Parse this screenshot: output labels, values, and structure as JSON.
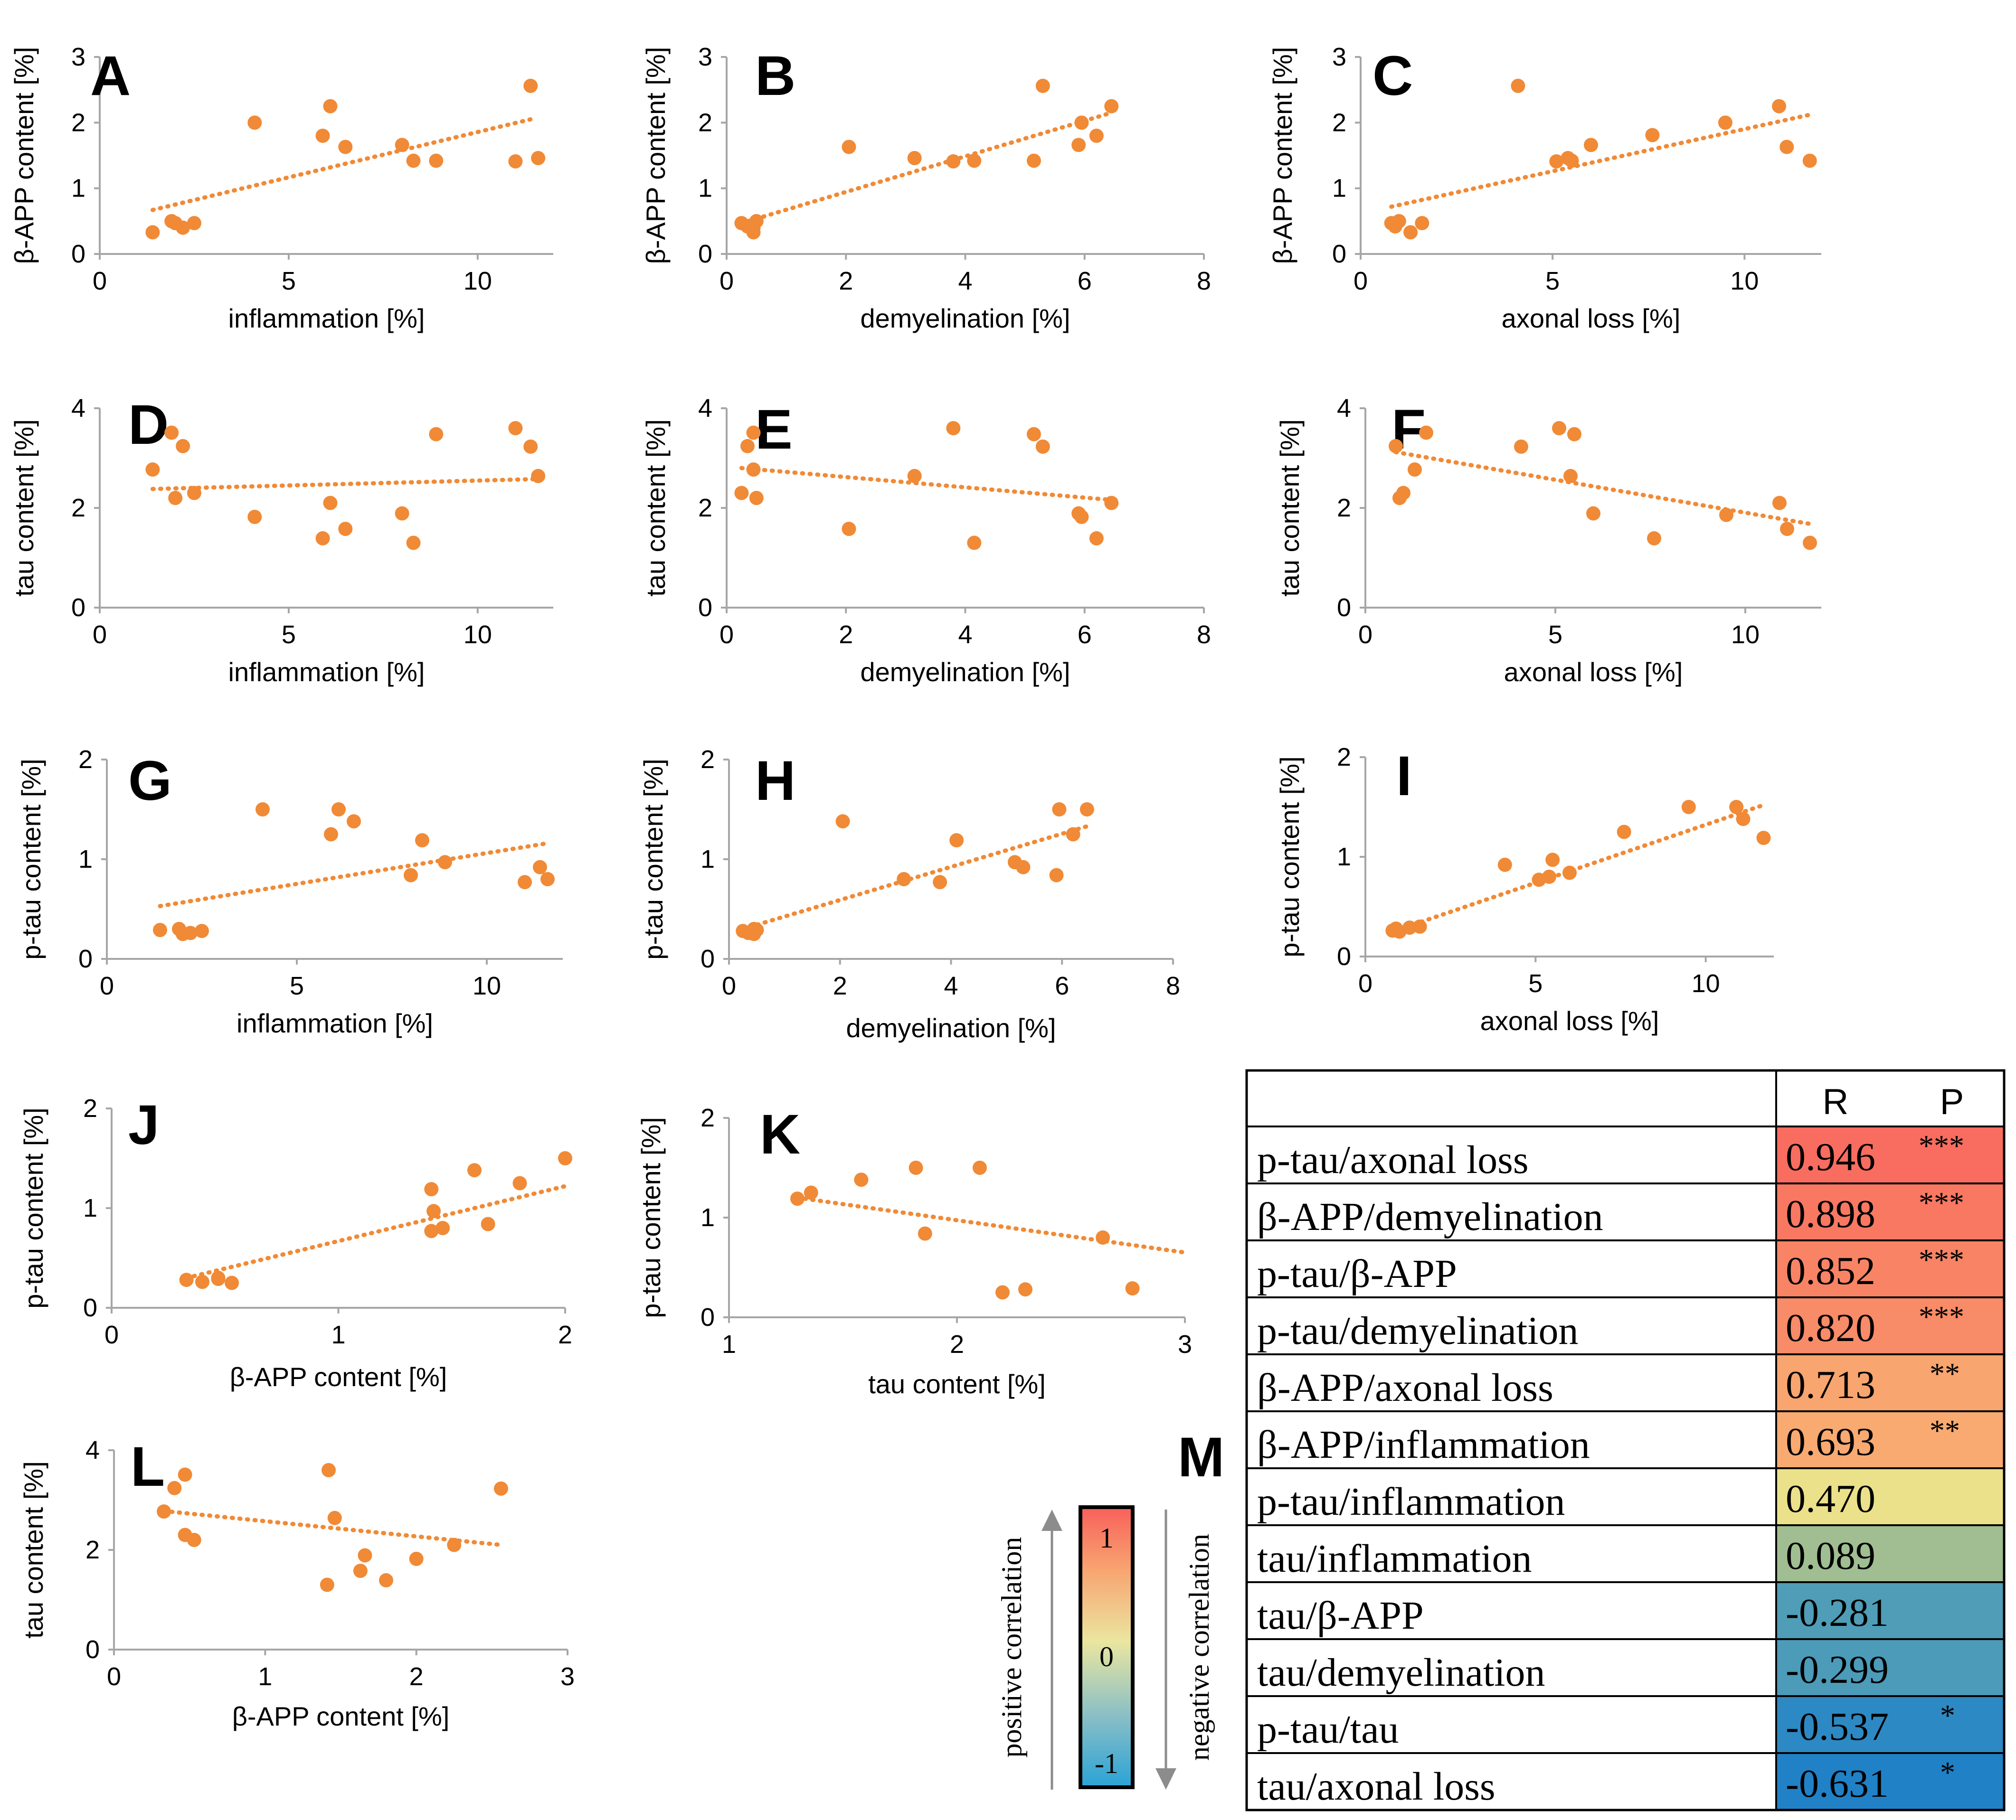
{
  "chart_data": [
    {
      "panel": "A",
      "type": "scatter",
      "xlabel": "inflammation [%]",
      "ylabel": "β-APP content [%]",
      "xlim": [
        0,
        12
      ],
      "ylim": [
        0,
        3
      ],
      "xticks": [
        0,
        5,
        10
      ],
      "yticks": [
        0,
        1,
        2,
        3
      ],
      "x": [
        1.4,
        1.9,
        2.0,
        2.2,
        2.5,
        4.1,
        5.9,
        6.1,
        6.5,
        8.0,
        8.3,
        8.9,
        11.0,
        11.4,
        11.6
      ],
      "y": [
        0.33,
        0.5,
        0.47,
        0.4,
        0.47,
        2.0,
        1.8,
        2.25,
        1.63,
        1.66,
        1.42,
        1.42,
        1.41,
        2.56,
        1.46
      ],
      "trendline": [
        [
          1.4,
          0.67
        ],
        [
          11.4,
          2.05
        ]
      ]
    },
    {
      "panel": "B",
      "type": "scatter",
      "xlabel": "demyelination [%]",
      "ylabel": "β-APP content [%]",
      "xlim": [
        0,
        8
      ],
      "ylim": [
        0,
        3
      ],
      "xticks": [
        0,
        2,
        4,
        6,
        8
      ],
      "yticks": [
        0,
        1,
        2,
        3
      ],
      "x": [
        0.25,
        0.35,
        0.45,
        0.45,
        0.5,
        2.05,
        3.15,
        3.8,
        4.15,
        5.15,
        5.3,
        5.9,
        5.95,
        6.2,
        6.45
      ],
      "y": [
        0.47,
        0.42,
        0.33,
        0.4,
        0.5,
        1.63,
        1.46,
        1.41,
        1.42,
        1.42,
        2.56,
        1.66,
        2.0,
        1.8,
        2.25
      ],
      "trendline": [
        [
          0.25,
          0.47
        ],
        [
          6.45,
          2.15
        ]
      ]
    },
    {
      "panel": "C",
      "type": "scatter",
      "xlabel": "axonal loss [%]",
      "ylabel": "β-APP content [%]",
      "xlim": [
        0,
        12
      ],
      "ylim": [
        0,
        3
      ],
      "xticks": [
        0,
        5,
        10
      ],
      "yticks": [
        0,
        1,
        2,
        3
      ],
      "x": [
        0.8,
        0.9,
        1.0,
        1.3,
        1.6,
        4.1,
        5.1,
        5.4,
        5.5,
        6.0,
        7.6,
        9.5,
        10.9,
        11.1,
        11.7
      ],
      "y": [
        0.47,
        0.42,
        0.5,
        0.33,
        0.47,
        2.56,
        1.41,
        1.46,
        1.42,
        1.66,
        1.81,
        2.0,
        2.25,
        1.63,
        1.42
      ],
      "trendline": [
        [
          0.8,
          0.72
        ],
        [
          11.7,
          2.12
        ]
      ]
    },
    {
      "panel": "D",
      "type": "scatter",
      "xlabel": "inflammation [%]",
      "ylabel": "tau content [%]",
      "xlim": [
        0,
        12
      ],
      "ylim": [
        0,
        4
      ],
      "xticks": [
        0,
        5,
        10
      ],
      "yticks": [
        0,
        2,
        4
      ],
      "x": [
        1.4,
        1.9,
        2.0,
        2.2,
        2.5,
        4.1,
        5.9,
        6.1,
        6.5,
        8.0,
        8.3,
        8.9,
        11.0,
        11.4,
        11.6
      ],
      "y": [
        2.77,
        3.51,
        2.2,
        3.24,
        2.3,
        1.82,
        1.39,
        2.1,
        1.58,
        1.89,
        1.3,
        3.48,
        3.6,
        3.23,
        2.64
      ],
      "trendline": [
        [
          1.4,
          2.38
        ],
        [
          11.6,
          2.58
        ]
      ]
    },
    {
      "panel": "E",
      "type": "scatter",
      "xlabel": "demyelination [%]",
      "ylabel": "tau content [%]",
      "xlim": [
        0,
        8
      ],
      "ylim": [
        0,
        4
      ],
      "xticks": [
        0,
        2,
        4,
        6,
        8
      ],
      "yticks": [
        0,
        2,
        4
      ],
      "x": [
        0.25,
        0.35,
        0.45,
        0.45,
        0.5,
        2.05,
        3.15,
        3.8,
        4.15,
        5.15,
        5.3,
        5.9,
        5.95,
        6.2,
        6.45
      ],
      "y": [
        2.3,
        3.24,
        2.77,
        3.51,
        2.2,
        1.58,
        2.64,
        3.6,
        1.3,
        3.48,
        3.23,
        1.89,
        1.82,
        1.39,
        2.1
      ],
      "trendline": [
        [
          0.25,
          2.8
        ],
        [
          6.45,
          2.16
        ]
      ]
    },
    {
      "panel": "F",
      "type": "scatter",
      "xlabel": "axonal loss [%]",
      "ylabel": "tau content [%]",
      "xlim": [
        0,
        12
      ],
      "ylim": [
        0,
        4
      ],
      "xticks": [
        0,
        5,
        10
      ],
      "yticks": [
        0,
        2,
        4
      ],
      "x": [
        0.8,
        0.9,
        1.0,
        1.3,
        1.6,
        4.1,
        5.1,
        5.4,
        5.5,
        6.0,
        7.6,
        9.5,
        10.9,
        11.1,
        11.7
      ],
      "y": [
        3.24,
        2.2,
        2.3,
        2.77,
        3.51,
        3.23,
        3.6,
        2.64,
        3.48,
        1.89,
        1.39,
        1.86,
        2.1,
        1.58,
        1.3
      ],
      "trendline": [
        [
          0.8,
          3.12
        ],
        [
          11.7,
          1.68
        ]
      ]
    },
    {
      "panel": "G",
      "type": "scatter",
      "xlabel": "inflammation [%]",
      "ylabel": "p-tau content [%]",
      "xlim": [
        0,
        12
      ],
      "ylim": [
        0,
        2
      ],
      "xticks": [
        0,
        5,
        10
      ],
      "yticks": [
        0,
        1,
        2
      ],
      "x": [
        1.4,
        1.9,
        2.0,
        2.2,
        2.5,
        4.1,
        5.9,
        6.1,
        6.5,
        8.0,
        8.3,
        8.9,
        11.0,
        11.4,
        11.6
      ],
      "y": [
        0.29,
        0.3,
        0.25,
        0.26,
        0.28,
        1.5,
        1.25,
        1.5,
        1.38,
        0.84,
        1.19,
        0.97,
        0.77,
        0.92,
        0.8
      ],
      "trendline": [
        [
          1.4,
          0.53
        ],
        [
          11.6,
          1.16
        ]
      ]
    },
    {
      "panel": "H",
      "type": "scatter",
      "xlabel": "demyelination [%]",
      "ylabel": "p-tau content [%]",
      "xlim": [
        0,
        8
      ],
      "ylim": [
        0,
        2
      ],
      "xticks": [
        0,
        2,
        4,
        6,
        8
      ],
      "yticks": [
        0,
        1,
        2
      ],
      "x": [
        0.25,
        0.35,
        0.45,
        0.45,
        0.5,
        2.05,
        3.15,
        3.8,
        4.1,
        5.15,
        5.3,
        5.9,
        5.95,
        6.2,
        6.45
      ],
      "y": [
        0.28,
        0.26,
        0.3,
        0.25,
        0.29,
        1.38,
        0.8,
        0.77,
        1.19,
        0.97,
        0.92,
        0.84,
        1.5,
        1.25,
        1.5
      ],
      "trendline": [
        [
          0.25,
          0.3
        ],
        [
          6.45,
          1.33
        ]
      ]
    },
    {
      "panel": "I",
      "type": "scatter",
      "xlabel": "axonal loss [%]",
      "ylabel": "p-tau content [%]",
      "xlim": [
        0,
        12
      ],
      "ylim": [
        0,
        2
      ],
      "xticks": [
        0,
        5,
        10
      ],
      "yticks": [
        0,
        1,
        2
      ],
      "x": [
        0.8,
        0.9,
        1.0,
        1.3,
        1.6,
        4.1,
        5.1,
        5.4,
        5.5,
        6.0,
        7.6,
        9.5,
        10.9,
        11.1,
        11.7
      ],
      "y": [
        0.26,
        0.28,
        0.25,
        0.29,
        0.3,
        0.92,
        0.77,
        0.8,
        0.97,
        0.84,
        1.25,
        1.5,
        1.5,
        1.38,
        1.19
      ],
      "trendline": [
        [
          0.8,
          0.25
        ],
        [
          11.7,
          1.52
        ]
      ]
    },
    {
      "panel": "J",
      "type": "scatter",
      "xlabel": "β-APP content [%]",
      "ylabel": "p-tau content [%]",
      "xlim": [
        0,
        2
      ],
      "ylim": [
        0,
        2
      ],
      "xticks": [
        0,
        1,
        2
      ],
      "yticks": [
        0,
        1,
        2
      ],
      "x": [
        0.33,
        0.4,
        0.47,
        0.47,
        0.53,
        1.41,
        1.41,
        1.42,
        1.46,
        1.6,
        1.66,
        1.8,
        2.0
      ],
      "y": [
        0.28,
        0.26,
        0.29,
        0.3,
        0.25,
        1.19,
        0.77,
        0.97,
        0.8,
        1.38,
        0.84,
        1.25,
        1.5
      ],
      "trendline": [
        [
          0.33,
          0.3
        ],
        [
          2.0,
          1.22
        ]
      ]
    },
    {
      "panel": "K",
      "type": "scatter",
      "xlabel": "tau content [%]",
      "ylabel": "p-tau content [%]",
      "xlim": [
        1,
        3
      ],
      "ylim": [
        0,
        2
      ],
      "xticks": [
        1,
        2,
        3
      ],
      "yticks": [
        0,
        1,
        2
      ],
      "x": [
        1.3,
        1.36,
        1.58,
        1.82,
        1.86,
        2.1,
        2.2,
        2.3,
        2.64,
        2.77
      ],
      "y": [
        1.19,
        1.25,
        1.38,
        1.5,
        0.84,
        1.5,
        0.25,
        0.28,
        0.8,
        0.29
      ],
      "trendline": [
        [
          1.3,
          1.2
        ],
        [
          3.0,
          0.65
        ]
      ]
    },
    {
      "panel": "L",
      "type": "scatter",
      "xlabel": "β-APP content [%]",
      "ylabel": "tau content [%]",
      "xlim": [
        0,
        3
      ],
      "ylim": [
        0,
        4
      ],
      "xticks": [
        0,
        1,
        2,
        3
      ],
      "yticks": [
        0,
        2,
        4
      ],
      "x": [
        0.33,
        0.4,
        0.47,
        0.47,
        0.53,
        1.41,
        1.42,
        1.46,
        1.63,
        1.66,
        1.8,
        2.0,
        2.25,
        2.56
      ],
      "y": [
        2.77,
        3.24,
        3.51,
        2.3,
        2.2,
        1.3,
        3.6,
        2.64,
        1.58,
        1.89,
        1.39,
        1.82,
        2.1,
        3.23
      ],
      "trendline": [
        [
          0.33,
          2.78
        ],
        [
          2.56,
          2.1
        ]
      ]
    },
    {
      "panel": "M",
      "type": "table",
      "columns": [
        "R",
        "P"
      ],
      "rows": [
        {
          "label": "p-tau/axonal loss",
          "r": "0.946",
          "r_value": 0.946,
          "p": "***"
        },
        {
          "label": "β-APP/demyelination",
          "r": "0.898",
          "r_value": 0.898,
          "p": "***"
        },
        {
          "label": "p-tau/β-APP",
          "r": "0.852",
          "r_value": 0.852,
          "p": "***"
        },
        {
          "label": "p-tau/demyelination",
          "r": "0.820",
          "r_value": 0.82,
          "p": "***"
        },
        {
          "label": "β-APP/axonal loss",
          "r": "0.713",
          "r_value": 0.713,
          "p": "**"
        },
        {
          "label": "β-APP/inflammation",
          "r": "0.693",
          "r_value": 0.693,
          "p": "**"
        },
        {
          "label": "p-tau/inflammation",
          "r": "0.470",
          "r_value": 0.47,
          "p": ""
        },
        {
          "label": "tau/inflammation",
          "r": "0.089",
          "r_value": 0.089,
          "p": ""
        },
        {
          "label": "tau/β-APP",
          "r": "-0.281",
          "r_value": -0.281,
          "p": ""
        },
        {
          "label": "tau/demyelination",
          "r": "-0.299",
          "r_value": -0.299,
          "p": ""
        },
        {
          "label": "p-tau/tau",
          "r": "-0.537",
          "r_value": -0.537,
          "p": "*"
        },
        {
          "label": "tau/axonal loss",
          "r": "-0.631",
          "r_value": -0.631,
          "p": "*"
        }
      ],
      "colorbar": {
        "ticks": [
          "1",
          "0",
          "-1"
        ],
        "left_label": "positive correlation",
        "right_label": "negative correlation"
      }
    }
  ],
  "colors": {
    "marker": "#F08A36",
    "trend": "#F08A36",
    "axis": "#A6A6A6",
    "text": "#000000",
    "arrow": "#8C8C8C"
  }
}
